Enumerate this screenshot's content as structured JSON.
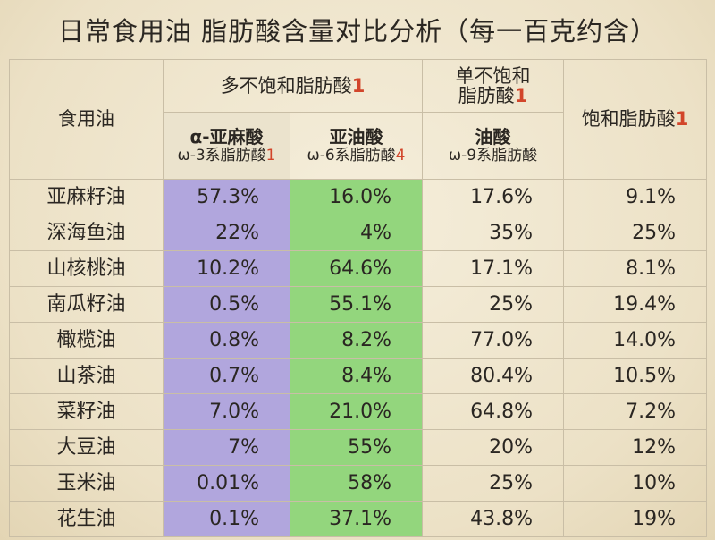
{
  "title": "日常食用油 脂肪酸含量对比分析（每一百克约含）",
  "header": {
    "oil": "食用油",
    "poly": "多不饱和脂肪酸",
    "poly_note": "1",
    "mono_line1": "单不饱和",
    "mono_line2": "脂肪酸",
    "mono_note": "1",
    "saturated": "饱和脂肪酸",
    "saturated_note": "1",
    "ala_name": "α-亚麻酸",
    "ala_sub": "ω-3系脂肪酸",
    "ala_note": "1",
    "la_name": "亚油酸",
    "la_sub": "ω-6系脂肪酸",
    "la_note": "4",
    "oa_name": "油酸",
    "oa_sub": "ω-9系脂肪酸"
  },
  "rows": [
    {
      "name": "亚麻籽油",
      "ala": "57.3%",
      "la": "16.0%",
      "oa": "17.6%",
      "sat": "9.1%"
    },
    {
      "name": "深海鱼油",
      "ala": "22%",
      "la": "4%",
      "oa": "35%",
      "sat": "25%"
    },
    {
      "name": "山核桃油",
      "ala": "10.2%",
      "la": "64.6%",
      "oa": "17.1%",
      "sat": "8.1%"
    },
    {
      "name": "南瓜籽油",
      "ala": "0.5%",
      "la": "55.1%",
      "oa": "25%",
      "sat": "19.4%"
    },
    {
      "name": "橄榄油",
      "ala": "0.8%",
      "la": "8.2%",
      "oa": "77.0%",
      "sat": "14.0%"
    },
    {
      "name": "山茶油",
      "ala": "0.7%",
      "la": "8.4%",
      "oa": "80.4%",
      "sat": "10.5%"
    },
    {
      "name": "菜籽油",
      "ala": "7.0%",
      "la": "21.0%",
      "oa": "64.8%",
      "sat": "7.2%"
    },
    {
      "name": "大豆油",
      "ala": "7%",
      "la": "55%",
      "oa": "20%",
      "sat": "12%"
    },
    {
      "name": "玉米油",
      "ala": "0.01%",
      "la": "58%",
      "oa": "25%",
      "sat": "10%"
    },
    {
      "name": "花生油",
      "ala": "0.1%",
      "la": "37.1%",
      "oa": "43.8%",
      "sat": "19%"
    }
  ],
  "colors": {
    "ala_column": "#b1a6dd",
    "la_column": "#93d67d",
    "note": "#d2452a"
  }
}
